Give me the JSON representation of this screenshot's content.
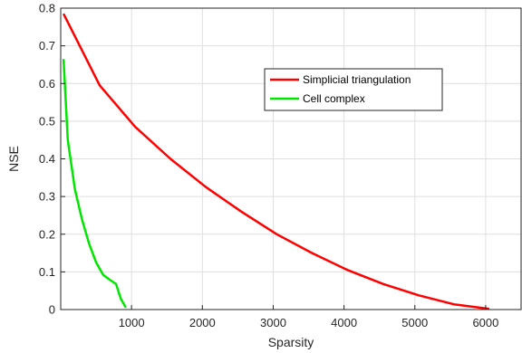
{
  "chart_data": {
    "type": "line",
    "title": "",
    "xlabel": "Sparsity",
    "ylabel": "NSE",
    "xlim": [
      0,
      6500
    ],
    "ylim": [
      0,
      0.8
    ],
    "xticks": [
      1000,
      2000,
      3000,
      4000,
      5000,
      6000
    ],
    "yticks": [
      0,
      0.1,
      0.2,
      0.3,
      0.4,
      0.5,
      0.6,
      0.7,
      0.8
    ],
    "grid": true,
    "legend_position": "top-right",
    "series": [
      {
        "name": "Simplicial triangulation",
        "color": "#ff0000",
        "x": [
          40,
          550,
          1050,
          1550,
          2050,
          2550,
          3050,
          3550,
          4050,
          4550,
          5050,
          5550,
          6050
        ],
        "y": [
          0.785,
          0.595,
          0.485,
          0.4,
          0.325,
          0.26,
          0.2,
          0.15,
          0.105,
          0.068,
          0.038,
          0.014,
          0.002
        ]
      },
      {
        "name": "Cell complex",
        "color": "#00e600",
        "x": [
          40,
          100,
          200,
          300,
          400,
          500,
          600,
          700,
          780,
          850,
          920
        ],
        "y": [
          0.665,
          0.45,
          0.32,
          0.24,
          0.175,
          0.125,
          0.092,
          0.078,
          0.068,
          0.028,
          0.005
        ]
      }
    ]
  }
}
